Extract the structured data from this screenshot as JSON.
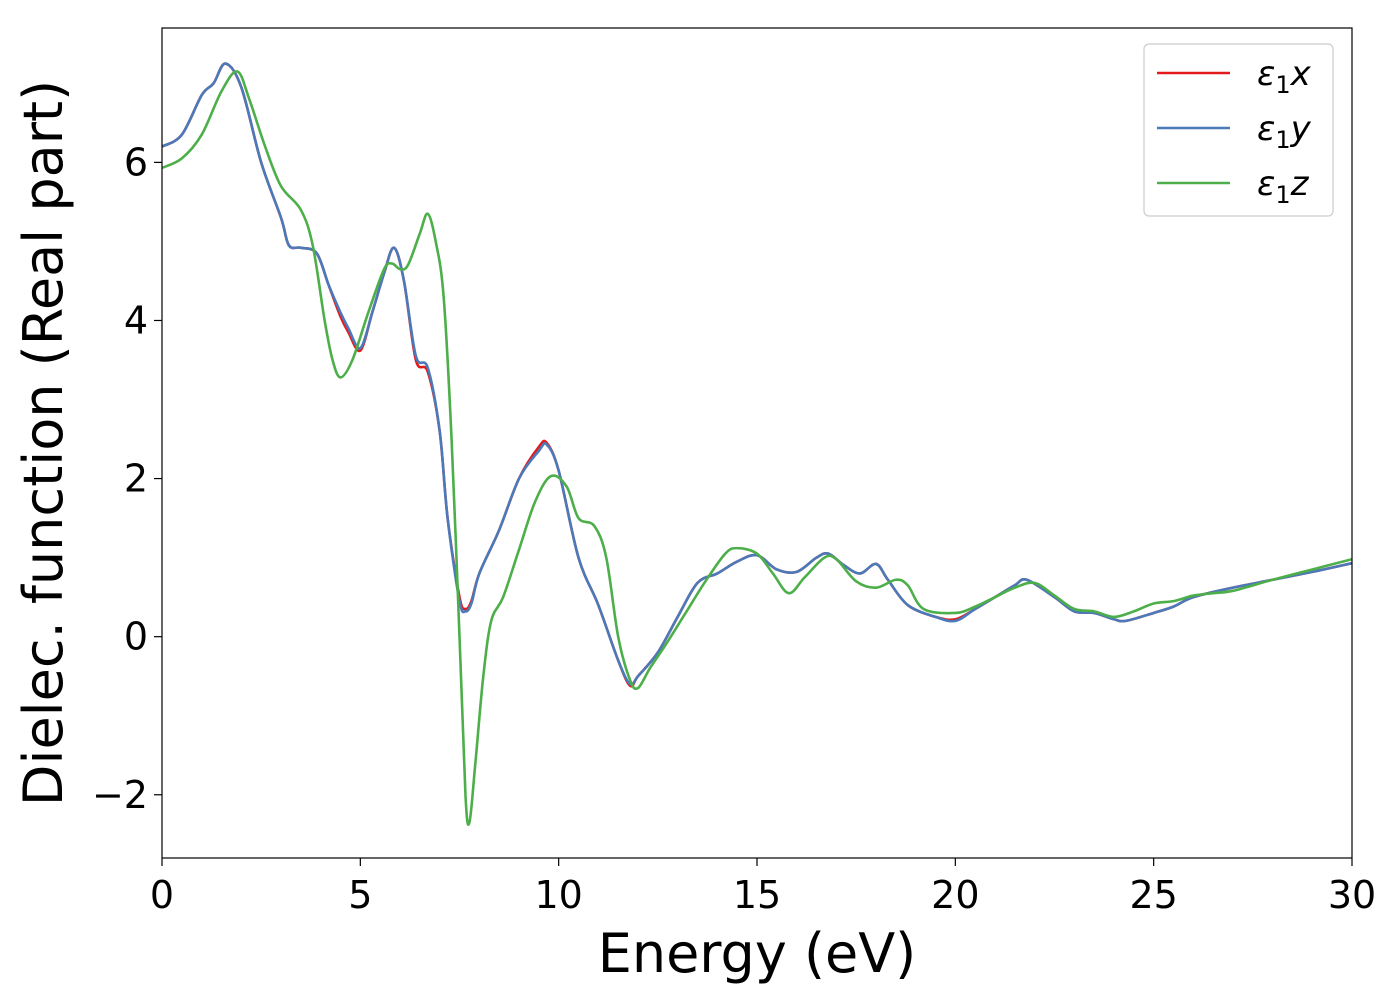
{
  "chart_data": {
    "type": "line",
    "xlabel": "Energy (eV)",
    "ylabel": "Dielec. function (Real part)",
    "xlim": [
      0,
      30
    ],
    "ylim": [
      -2.8,
      7.7
    ],
    "xticks": [
      0,
      5,
      10,
      15,
      20,
      25,
      30
    ],
    "xtick_labels": [
      "0",
      "5",
      "10",
      "15",
      "20",
      "25",
      "30"
    ],
    "yticks": [
      -2,
      0,
      2,
      4,
      6
    ],
    "ytick_labels": [
      "−2",
      "0",
      "2",
      "4",
      "6"
    ],
    "grid": false,
    "legend_position": "top-right",
    "series": [
      {
        "name": "ε1x",
        "legend_base": "ε",
        "legend_sub": "1",
        "legend_tail": "x",
        "color": "#e41a1c",
        "points": [
          [
            0,
            6.2
          ],
          [
            0.5,
            6.35
          ],
          [
            1,
            6.85
          ],
          [
            1.3,
            7.0
          ],
          [
            1.6,
            7.25
          ],
          [
            2.0,
            6.95
          ],
          [
            2.5,
            6.0
          ],
          [
            3.0,
            5.3
          ],
          [
            3.2,
            4.95
          ],
          [
            3.5,
            4.92
          ],
          [
            3.9,
            4.85
          ],
          [
            4.2,
            4.45
          ],
          [
            4.5,
            4.05
          ],
          [
            4.7,
            3.85
          ],
          [
            5.0,
            3.62
          ],
          [
            5.3,
            4.1
          ],
          [
            5.6,
            4.6
          ],
          [
            5.85,
            4.92
          ],
          [
            6.1,
            4.5
          ],
          [
            6.4,
            3.5
          ],
          [
            6.7,
            3.35
          ],
          [
            7.0,
            2.6
          ],
          [
            7.2,
            1.5
          ],
          [
            7.5,
            0.5
          ],
          [
            7.65,
            0.35
          ],
          [
            7.8,
            0.45
          ],
          [
            8.0,
            0.8
          ],
          [
            8.5,
            1.35
          ],
          [
            9.0,
            2.0
          ],
          [
            9.5,
            2.4
          ],
          [
            9.7,
            2.45
          ],
          [
            10.0,
            2.1
          ],
          [
            10.5,
            1.0
          ],
          [
            11.0,
            0.4
          ],
          [
            11.5,
            -0.3
          ],
          [
            11.8,
            -0.62
          ],
          [
            12.0,
            -0.5
          ],
          [
            12.5,
            -0.2
          ],
          [
            13.0,
            0.25
          ],
          [
            13.5,
            0.68
          ],
          [
            14.0,
            0.8
          ],
          [
            14.5,
            0.95
          ],
          [
            15.0,
            1.03
          ],
          [
            15.5,
            0.85
          ],
          [
            16.0,
            0.82
          ],
          [
            16.5,
            1.0
          ],
          [
            16.8,
            1.05
          ],
          [
            17.2,
            0.9
          ],
          [
            17.6,
            0.8
          ],
          [
            18.0,
            0.92
          ],
          [
            18.3,
            0.72
          ],
          [
            18.8,
            0.4
          ],
          [
            19.5,
            0.25
          ],
          [
            20.0,
            0.22
          ],
          [
            20.5,
            0.35
          ],
          [
            21.0,
            0.5
          ],
          [
            21.5,
            0.65
          ],
          [
            21.8,
            0.72
          ],
          [
            22.5,
            0.5
          ],
          [
            23.0,
            0.32
          ],
          [
            23.5,
            0.3
          ],
          [
            24.0,
            0.22
          ],
          [
            24.3,
            0.2
          ],
          [
            25.0,
            0.3
          ],
          [
            25.5,
            0.38
          ],
          [
            26.0,
            0.5
          ],
          [
            27.0,
            0.62
          ],
          [
            28.0,
            0.72
          ],
          [
            29.0,
            0.82
          ],
          [
            30.0,
            0.93
          ]
        ]
      },
      {
        "name": "ε1y",
        "legend_base": "ε",
        "legend_sub": "1",
        "legend_tail": "y",
        "color": "#4a7ab9",
        "points": [
          [
            0,
            6.2
          ],
          [
            0.5,
            6.35
          ],
          [
            1,
            6.85
          ],
          [
            1.3,
            7.0
          ],
          [
            1.6,
            7.25
          ],
          [
            2.0,
            6.95
          ],
          [
            2.5,
            6.0
          ],
          [
            3.0,
            5.3
          ],
          [
            3.2,
            4.95
          ],
          [
            3.5,
            4.92
          ],
          [
            3.9,
            4.85
          ],
          [
            4.2,
            4.45
          ],
          [
            4.5,
            4.1
          ],
          [
            4.7,
            3.9
          ],
          [
            5.0,
            3.65
          ],
          [
            5.3,
            4.1
          ],
          [
            5.6,
            4.6
          ],
          [
            5.85,
            4.92
          ],
          [
            6.1,
            4.5
          ],
          [
            6.4,
            3.55
          ],
          [
            6.7,
            3.4
          ],
          [
            7.0,
            2.6
          ],
          [
            7.2,
            1.5
          ],
          [
            7.5,
            0.45
          ],
          [
            7.65,
            0.32
          ],
          [
            7.8,
            0.42
          ],
          [
            8.0,
            0.8
          ],
          [
            8.5,
            1.35
          ],
          [
            9.0,
            2.0
          ],
          [
            9.5,
            2.35
          ],
          [
            9.7,
            2.43
          ],
          [
            10.0,
            2.1
          ],
          [
            10.5,
            1.0
          ],
          [
            11.0,
            0.4
          ],
          [
            11.5,
            -0.3
          ],
          [
            11.8,
            -0.6
          ],
          [
            12.0,
            -0.5
          ],
          [
            12.5,
            -0.2
          ],
          [
            13.0,
            0.25
          ],
          [
            13.5,
            0.68
          ],
          [
            14.0,
            0.8
          ],
          [
            14.5,
            0.95
          ],
          [
            15.0,
            1.03
          ],
          [
            15.5,
            0.85
          ],
          [
            16.0,
            0.82
          ],
          [
            16.5,
            1.0
          ],
          [
            16.8,
            1.05
          ],
          [
            17.2,
            0.9
          ],
          [
            17.6,
            0.8
          ],
          [
            18.0,
            0.92
          ],
          [
            18.3,
            0.72
          ],
          [
            18.8,
            0.4
          ],
          [
            19.5,
            0.25
          ],
          [
            20.0,
            0.2
          ],
          [
            20.5,
            0.35
          ],
          [
            21.0,
            0.5
          ],
          [
            21.5,
            0.65
          ],
          [
            21.8,
            0.72
          ],
          [
            22.5,
            0.5
          ],
          [
            23.0,
            0.32
          ],
          [
            23.5,
            0.3
          ],
          [
            24.0,
            0.22
          ],
          [
            24.3,
            0.2
          ],
          [
            25.0,
            0.3
          ],
          [
            25.5,
            0.38
          ],
          [
            26.0,
            0.5
          ],
          [
            27.0,
            0.62
          ],
          [
            28.0,
            0.72
          ],
          [
            29.0,
            0.82
          ],
          [
            30.0,
            0.93
          ]
        ]
      },
      {
        "name": "ε1z",
        "legend_base": "ε",
        "legend_sub": "1",
        "legend_tail": "z",
        "color": "#4daf4a",
        "points": [
          [
            0,
            5.93
          ],
          [
            0.5,
            6.05
          ],
          [
            1.0,
            6.35
          ],
          [
            1.5,
            6.9
          ],
          [
            1.9,
            7.15
          ],
          [
            2.2,
            6.8
          ],
          [
            2.6,
            6.2
          ],
          [
            3.0,
            5.7
          ],
          [
            3.5,
            5.4
          ],
          [
            3.8,
            4.95
          ],
          [
            4.1,
            4.0
          ],
          [
            4.3,
            3.5
          ],
          [
            4.5,
            3.28
          ],
          [
            4.8,
            3.5
          ],
          [
            5.2,
            4.1
          ],
          [
            5.6,
            4.65
          ],
          [
            5.8,
            4.72
          ],
          [
            6.0,
            4.65
          ],
          [
            6.2,
            4.7
          ],
          [
            6.5,
            5.1
          ],
          [
            6.7,
            5.35
          ],
          [
            6.9,
            5.0
          ],
          [
            7.1,
            4.3
          ],
          [
            7.3,
            2.5
          ],
          [
            7.5,
            0.0
          ],
          [
            7.65,
            -2.0
          ],
          [
            7.75,
            -2.35
          ],
          [
            7.9,
            -1.6
          ],
          [
            8.1,
            -0.5
          ],
          [
            8.3,
            0.2
          ],
          [
            8.6,
            0.5
          ],
          [
            9.0,
            1.1
          ],
          [
            9.4,
            1.7
          ],
          [
            9.8,
            2.03
          ],
          [
            10.2,
            1.9
          ],
          [
            10.5,
            1.5
          ],
          [
            10.9,
            1.4
          ],
          [
            11.2,
            1.0
          ],
          [
            11.5,
            0.0
          ],
          [
            11.8,
            -0.55
          ],
          [
            12.0,
            -0.65
          ],
          [
            12.3,
            -0.4
          ],
          [
            12.7,
            -0.1
          ],
          [
            13.2,
            0.3
          ],
          [
            13.7,
            0.7
          ],
          [
            14.2,
            1.05
          ],
          [
            14.5,
            1.12
          ],
          [
            15.0,
            1.05
          ],
          [
            15.4,
            0.8
          ],
          [
            15.8,
            0.55
          ],
          [
            16.2,
            0.75
          ],
          [
            16.7,
            1.0
          ],
          [
            17.0,
            0.98
          ],
          [
            17.5,
            0.7
          ],
          [
            18.0,
            0.62
          ],
          [
            18.5,
            0.72
          ],
          [
            18.8,
            0.65
          ],
          [
            19.2,
            0.35
          ],
          [
            20.0,
            0.3
          ],
          [
            20.5,
            0.38
          ],
          [
            21.0,
            0.5
          ],
          [
            21.5,
            0.62
          ],
          [
            22.0,
            0.68
          ],
          [
            22.5,
            0.52
          ],
          [
            23.0,
            0.35
          ],
          [
            23.5,
            0.32
          ],
          [
            24.0,
            0.25
          ],
          [
            24.5,
            0.32
          ],
          [
            25.0,
            0.42
          ],
          [
            25.5,
            0.45
          ],
          [
            26.0,
            0.52
          ],
          [
            26.5,
            0.55
          ],
          [
            27.0,
            0.58
          ],
          [
            28.0,
            0.72
          ],
          [
            29.0,
            0.85
          ],
          [
            30.0,
            0.98
          ]
        ]
      }
    ]
  }
}
